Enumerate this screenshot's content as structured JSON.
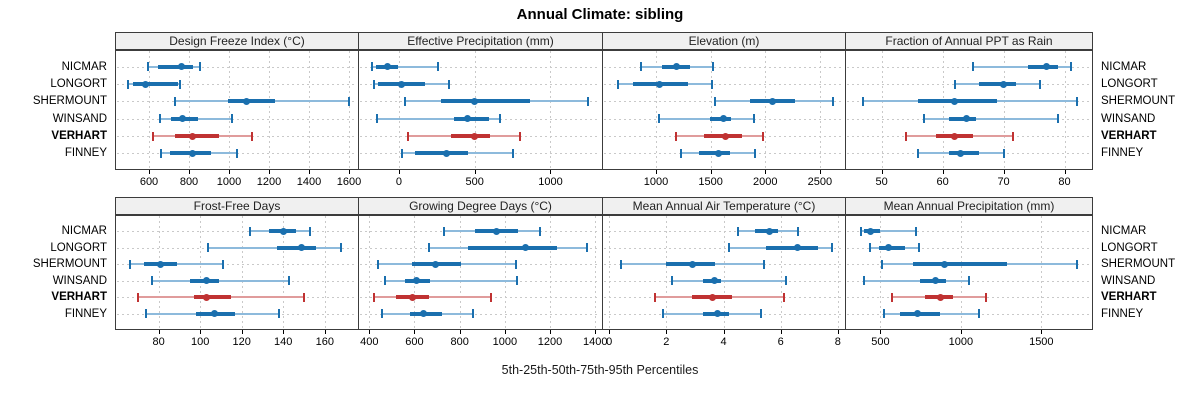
{
  "title": "Annual Climate: sibling",
  "footer": "5th-25th-50th-75th-95th Percentiles",
  "sites": [
    "NICMAR",
    "LONGORT",
    "SHERMOUNT",
    "WINSAND",
    "VERHART",
    "FINNEY"
  ],
  "highlight_site": "VERHART",
  "colors": {
    "blue_dark": "#1a6fae",
    "blue_light": "#8dbadc",
    "red_dark": "#c03232",
    "red_light": "#e09c9c",
    "grid": "#c9c9c9",
    "strip_bg": "#f0f0f0",
    "panel_border": "#3c3c3c"
  },
  "chart_data": {
    "type": "trellis-dotplot-percentiles",
    "percentile_levels": [
      5,
      25,
      50,
      75,
      95
    ],
    "grid": "dotted",
    "panels": [
      {
        "title": "Design Freeze Index (°C)",
        "row": 0,
        "col": 0,
        "xlim": [
          430,
          1645
        ],
        "ticks": [
          600,
          800,
          1000,
          1200,
          1400,
          1600
        ],
        "values": {
          "NICMAR": [
            595,
            645,
            760,
            820,
            855
          ],
          "LONGORT": [
            495,
            520,
            580,
            745,
            755
          ],
          "SHERMOUNT": [
            730,
            995,
            1085,
            1230,
            1600
          ],
          "WINSAND": [
            655,
            710,
            765,
            845,
            1015
          ],
          "VERHART": [
            620,
            730,
            815,
            950,
            1115
          ],
          "FINNEY": [
            660,
            705,
            815,
            910,
            1040
          ]
        }
      },
      {
        "title": "Effective Precipitation (mm)",
        "row": 0,
        "col": 1,
        "xlim": [
          -270,
          1340
        ],
        "ticks": [
          0,
          500,
          1000
        ],
        "values": {
          "NICMAR": [
            -175,
            -150,
            -77,
            -7,
            260
          ],
          "LONGORT": [
            -165,
            -140,
            20,
            170,
            330
          ],
          "SHERMOUNT": [
            40,
            280,
            500,
            865,
            1250
          ],
          "WINSAND": [
            -145,
            365,
            450,
            595,
            665
          ],
          "VERHART": [
            60,
            345,
            500,
            600,
            800
          ],
          "FINNEY": [
            20,
            105,
            315,
            455,
            750
          ]
        }
      },
      {
        "title": "Elevation (m)",
        "row": 0,
        "col": 2,
        "xlim": [
          505,
          2730
        ],
        "ticks": [
          1000,
          1500,
          2000,
          2500
        ],
        "values": {
          "NICMAR": [
            865,
            1050,
            1185,
            1310,
            1520
          ],
          "LONGORT": [
            655,
            790,
            1035,
            1295,
            1515
          ],
          "SHERMOUNT": [
            1540,
            1860,
            2065,
            2270,
            2620
          ],
          "WINSAND": [
            1025,
            1495,
            1615,
            1690,
            1895
          ],
          "VERHART": [
            1180,
            1435,
            1640,
            1785,
            1975
          ],
          "FINNEY": [
            1225,
            1390,
            1570,
            1675,
            1910
          ]
        }
      },
      {
        "title": "Fraction of Annual PPT as Rain",
        "row": 0,
        "col": 3,
        "xlim": [
          44,
          84.5
        ],
        "ticks": [
          50,
          60,
          70,
          80
        ],
        "values": {
          "NICMAR": [
            65,
            74,
            77,
            79,
            81
          ],
          "LONGORT": [
            62,
            66,
            70,
            72,
            76
          ],
          "SHERMOUNT": [
            47,
            56,
            62,
            69,
            82
          ],
          "WINSAND": [
            57,
            61,
            64,
            65.5,
            79
          ],
          "VERHART": [
            54,
            59,
            62,
            65,
            71.5
          ],
          "FINNEY": [
            56,
            61,
            63,
            66,
            70
          ]
        }
      },
      {
        "title": "Frost-Free Days",
        "row": 1,
        "col": 0,
        "xlim": [
          59,
          176
        ],
        "ticks": [
          80,
          100,
          120,
          140,
          160
        ],
        "values": {
          "NICMAR": [
            124,
            133,
            140,
            146,
            153
          ],
          "LONGORT": [
            104,
            137,
            149,
            156,
            168
          ],
          "SHERMOUNT": [
            66,
            73,
            81,
            89,
            111
          ],
          "WINSAND": [
            77,
            95,
            103,
            109,
            143
          ],
          "VERHART": [
            70,
            97,
            103,
            115,
            150
          ],
          "FINNEY": [
            74,
            98,
            107,
            117,
            138
          ]
        }
      },
      {
        "title": "Growing Degree Days (°C)",
        "row": 1,
        "col": 1,
        "xlim": [
          350,
          1430
        ],
        "ticks": [
          400,
          600,
          800,
          1000,
          1200,
          1400
        ],
        "values": {
          "NICMAR": [
            730,
            870,
            965,
            1060,
            1155
          ],
          "LONGORT": [
            665,
            835,
            1090,
            1230,
            1365
          ],
          "SHERMOUNT": [
            440,
            590,
            695,
            805,
            1050
          ],
          "WINSAND": [
            470,
            560,
            610,
            670,
            1055
          ],
          "VERHART": [
            420,
            520,
            590,
            665,
            940
          ],
          "FINNEY": [
            455,
            580,
            640,
            720,
            860
          ]
        }
      },
      {
        "title": "Mean Annual Air Temperature (°C)",
        "row": 1,
        "col": 2,
        "xlim": [
          -0.25,
          8.25
        ],
        "ticks": [
          0,
          2,
          4,
          6,
          8
        ],
        "values": {
          "NICMAR": [
            4.5,
            5.1,
            5.6,
            5.9,
            6.6
          ],
          "LONGORT": [
            4.2,
            5.5,
            6.6,
            7.3,
            7.8
          ],
          "SHERMOUNT": [
            0.4,
            2.0,
            2.9,
            3.7,
            5.4
          ],
          "WINSAND": [
            2.2,
            3.3,
            3.7,
            3.9,
            6.2
          ],
          "VERHART": [
            1.6,
            2.9,
            3.6,
            4.3,
            6.1
          ],
          "FINNEY": [
            1.9,
            3.3,
            3.8,
            4.2,
            5.3
          ]
        }
      },
      {
        "title": "Mean Annual Precipitation (mm)",
        "row": 1,
        "col": 3,
        "xlim": [
          280,
          1815
        ],
        "ticks": [
          500,
          1000,
          1500
        ],
        "values": {
          "NICMAR": [
            380,
            395,
            440,
            495,
            720
          ],
          "LONGORT": [
            435,
            490,
            550,
            650,
            740
          ],
          "SHERMOUNT": [
            510,
            705,
            900,
            1285,
            1720
          ],
          "WINSAND": [
            395,
            745,
            845,
            910,
            1050
          ],
          "VERHART": [
            575,
            775,
            875,
            950,
            1155
          ],
          "FINNEY": [
            520,
            620,
            730,
            870,
            1115
          ]
        }
      }
    ]
  }
}
